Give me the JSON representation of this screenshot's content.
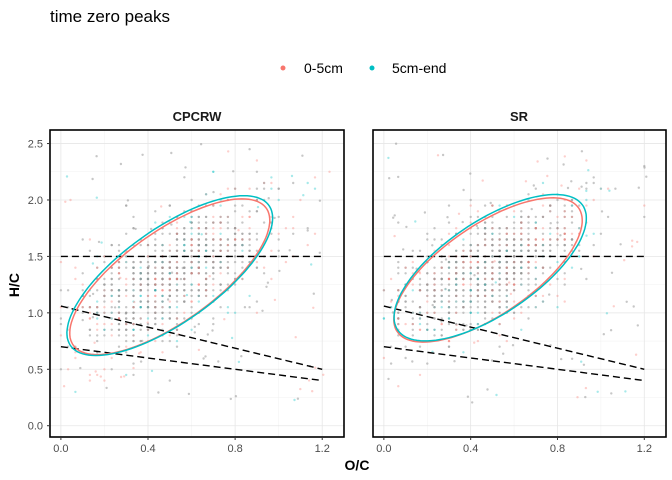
{
  "chart_data": {
    "type": "scatter",
    "title": "time zero peaks",
    "xlabel": "O/C",
    "ylabel": "H/C",
    "xlim": [
      -0.05,
      1.3
    ],
    "ylim": [
      -0.1,
      2.62
    ],
    "x_ticks": [
      0.0,
      0.4,
      0.8,
      1.2
    ],
    "x_tick_labels": [
      "0.0",
      "0.4",
      "0.8",
      "1.2"
    ],
    "y_ticks": [
      0.0,
      0.5,
      1.0,
      1.5,
      2.0,
      2.5
    ],
    "y_tick_labels": [
      "0.0",
      "0.5",
      "1.0",
      "1.5",
      "2.0",
      "2.5"
    ],
    "grid": true,
    "legend": {
      "position": "top",
      "entries": [
        {
          "label": "0-5cm",
          "color": "#F8766D"
        },
        {
          "label": "5cm-end",
          "color": "#00BFC4"
        }
      ]
    },
    "series": [
      {
        "name": "0-5cm",
        "color": "#F8766D"
      },
      {
        "name": "5cm-end",
        "color": "#00BFC4"
      }
    ],
    "background_points_color": "#999999",
    "reference_lines": [
      {
        "from": [
          0.0,
          1.5
        ],
        "to": [
          1.2,
          1.5
        ],
        "style": "dashed"
      },
      {
        "from": [
          0.0,
          1.06
        ],
        "to": [
          1.2,
          0.5
        ],
        "style": "dashed"
      },
      {
        "from": [
          0.0,
          0.7
        ],
        "to": [
          1.2,
          0.4
        ],
        "style": "dashed"
      }
    ],
    "panels": [
      {
        "label": "CPCRW",
        "ellipses": [
          {
            "series": "0-5cm",
            "center": [
              0.5,
              1.32
            ],
            "semi_major": 0.78,
            "semi_minor": 0.28,
            "angle_deg": 60
          },
          {
            "series": "5cm-end",
            "center": [
              0.5,
              1.33
            ],
            "semi_major": 0.8,
            "semi_minor": 0.29,
            "angle_deg": 60
          }
        ]
      },
      {
        "label": "SR",
        "ellipses": [
          {
            "series": "0-5cm",
            "center": [
              0.48,
              1.38
            ],
            "semi_major": 0.72,
            "semi_minor": 0.28,
            "angle_deg": 60
          },
          {
            "series": "5cm-end",
            "center": [
              0.49,
              1.4
            ],
            "semi_major": 0.73,
            "semi_minor": 0.29,
            "angle_deg": 60
          }
        ]
      }
    ]
  }
}
